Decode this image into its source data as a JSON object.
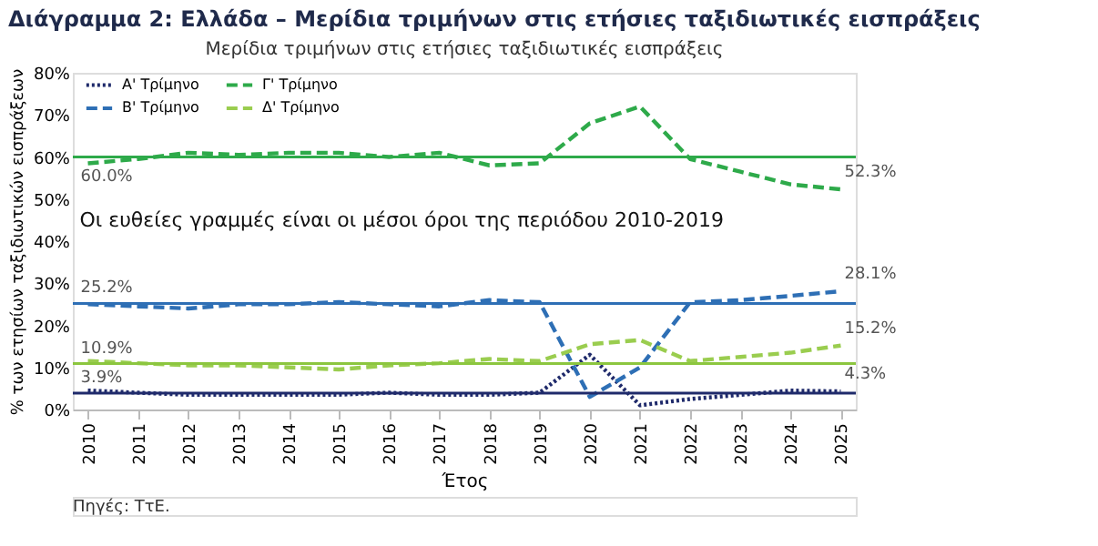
{
  "chart_data": {
    "type": "line",
    "title": "Διάγραμμα 2: Ελλάδα – Μερίδια τριμήνων στις ετήσιες ταξιδιωτικές εισπράξεις",
    "subtitle": "Μερίδια τριμήνων στις ετήσιες ταξιδιωτικές εισπράξεις",
    "xlabel": "Έτος",
    "ylabel": "% των ετησίων ταξιδιωτικών εισπράξεων",
    "categories": [
      "2010",
      "2011",
      "2012",
      "2013",
      "2014",
      "2015",
      "2016",
      "2017",
      "2018",
      "2019",
      "2020",
      "2021",
      "2022",
      "2023",
      "2024",
      "2025"
    ],
    "series": [
      {
        "name": "Α' Τρίμηνο",
        "color": "#1f2a6b",
        "line_style": "dotted",
        "values": [
          4.5,
          4,
          3.5,
          3.5,
          3.5,
          3.5,
          4,
          3.5,
          3.5,
          4,
          13,
          1,
          2.5,
          3.5,
          4.5,
          4.3
        ]
      },
      {
        "name": "Β' Τρίμηνο",
        "color": "#2e6fb5",
        "line_style": "dashed",
        "values": [
          25,
          24.5,
          24,
          25,
          25,
          25.5,
          25,
          24.5,
          26,
          25.5,
          3,
          10,
          25.5,
          26,
          27,
          28.1
        ]
      },
      {
        "name": "Γ' Τρίμηνο",
        "color": "#2eaa4a",
        "line_style": "dashed",
        "values": [
          58.5,
          59.5,
          61,
          60.5,
          61,
          61,
          60,
          61,
          58,
          58.5,
          68,
          72,
          59.5,
          56.5,
          53.5,
          52.3
        ]
      },
      {
        "name": "Δ' Τρίμηνο",
        "color": "#9acd4f",
        "line_style": "dashed",
        "values": [
          11.5,
          11,
          10.5,
          10.5,
          10,
          9.5,
          10.5,
          11,
          12,
          11.5,
          15.5,
          16.5,
          11.5,
          12.5,
          13.5,
          15.2
        ]
      }
    ],
    "ref_lines": [
      {
        "axis": "y",
        "value": 60.0,
        "label": "60.0%",
        "color": "#2eaa4a"
      },
      {
        "axis": "y",
        "value": 25.2,
        "label": "25.2%",
        "color": "#2e6fb5"
      },
      {
        "axis": "y",
        "value": 10.9,
        "label": "10.9%",
        "color": "#8cc63f"
      },
      {
        "axis": "y",
        "value": 3.9,
        "label": "3.9%",
        "color": "#1f2a6b"
      }
    ],
    "annotations": [
      {
        "text": "52.3%",
        "x": "2025",
        "y": 52.3
      },
      {
        "text": "28.1%",
        "x": "2025",
        "y": 28.1
      },
      {
        "text": "15.2%",
        "x": "2025",
        "y": 15.2
      },
      {
        "text": "4.3%",
        "x": "2025",
        "y": 4.3
      },
      "Οι ευθείες γραμμές είναι οι μέσοι όροι της περιόδου 2010-2019",
      "Πηγές: ΤτΕ."
    ],
    "ylim": [
      0,
      80
    ],
    "yticks": [
      {
        "value": 0,
        "label": "0%"
      },
      {
        "value": 10,
        "label": "10%"
      },
      {
        "value": 20,
        "label": "20%"
      },
      {
        "value": 30,
        "label": "30%"
      },
      {
        "value": 40,
        "label": "40%"
      },
      {
        "value": 50,
        "label": "50%"
      },
      {
        "value": 60,
        "label": "60%"
      },
      {
        "value": 70,
        "label": "70%"
      },
      {
        "value": 80,
        "label": "80%"
      }
    ],
    "grid": false,
    "legend": "top left"
  }
}
